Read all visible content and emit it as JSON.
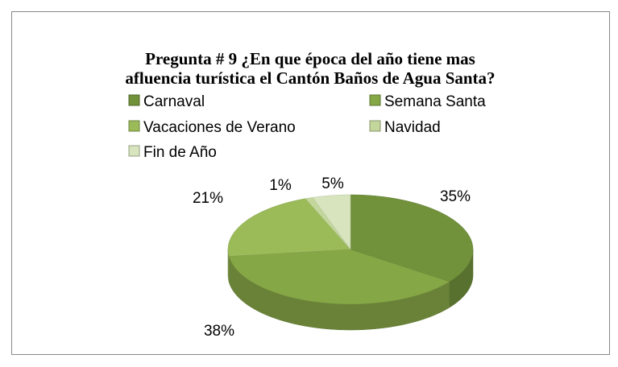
{
  "chart_data": {
    "type": "pie",
    "title": [
      "Pregunta # 9 ¿En que época del año tiene mas",
      "afluencia turística el Cantón Baños de Agua Santa?"
    ],
    "categories": [
      "Carnaval",
      "Semana Santa",
      "Vacaciones de Verano",
      "Navidad",
      "Fin de Año"
    ],
    "values": [
      35,
      38,
      21,
      1,
      5
    ],
    "value_labels": [
      "35%",
      "38%",
      "21%",
      "1%",
      "5%"
    ],
    "colors": [
      "#71913b",
      "#86a746",
      "#9bbb59",
      "#c3d69b",
      "#d7e4bd"
    ],
    "legend": "top"
  }
}
